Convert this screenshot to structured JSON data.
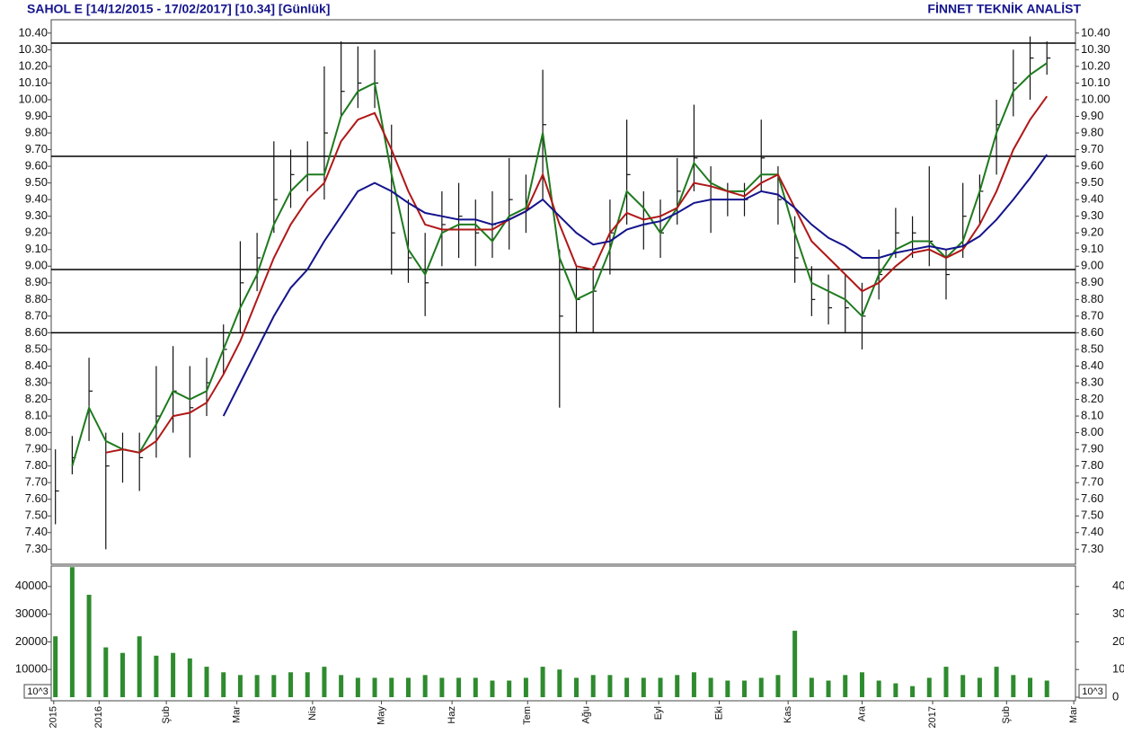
{
  "chart_data": [
    {
      "type": "ohlc",
      "title": "SAHOL E  [14/12/2015 - 17/02/2017]  [10.34]  [Günlük]",
      "source": "FİNNET TEKNİK ANALİST",
      "xlim": [
        -0.25,
        60.7
      ],
      "ylim": [
        7.21,
        10.48
      ],
      "yticks": [
        {
          "value": 7.3,
          "label": "7.30"
        },
        {
          "value": 7.4,
          "label": "7.40"
        },
        {
          "value": 7.5,
          "label": "7.50"
        },
        {
          "value": 7.6,
          "label": "7.60"
        },
        {
          "value": 7.7,
          "label": "7.70"
        },
        {
          "value": 7.8,
          "label": "7.80"
        },
        {
          "value": 7.9,
          "label": "7.90"
        },
        {
          "value": 8.0,
          "label": "8.00"
        },
        {
          "value": 8.1,
          "label": "8.10"
        },
        {
          "value": 8.2,
          "label": "8.20"
        },
        {
          "value": 8.3,
          "label": "8.30"
        },
        {
          "value": 8.4,
          "label": "8.40"
        },
        {
          "value": 8.5,
          "label": "8.50"
        },
        {
          "value": 8.6,
          "label": "8.60"
        },
        {
          "value": 8.7,
          "label": "8.70"
        },
        {
          "value": 8.8,
          "label": "8.80"
        },
        {
          "value": 8.9,
          "label": "8.90"
        },
        {
          "value": 9.0,
          "label": "9.00"
        },
        {
          "value": 9.1,
          "label": "9.10"
        },
        {
          "value": 9.2,
          "label": "9.20"
        },
        {
          "value": 9.3,
          "label": "9.30"
        },
        {
          "value": 9.4,
          "label": "9.40"
        },
        {
          "value": 9.5,
          "label": "9.50"
        },
        {
          "value": 9.6,
          "label": "9.60"
        },
        {
          "value": 9.7,
          "label": "9.70"
        },
        {
          "value": 9.8,
          "label": "9.80"
        },
        {
          "value": 9.9,
          "label": "9.90"
        },
        {
          "value": 10.0,
          "label": "10.00"
        },
        {
          "value": 10.1,
          "label": "10.10"
        },
        {
          "value": 10.2,
          "label": "10.20"
        },
        {
          "value": 10.3,
          "label": "10.30"
        },
        {
          "value": 10.4,
          "label": "10.40"
        }
      ],
      "hlines": [
        10.34,
        9.66,
        8.98,
        8.6
      ],
      "bar_color": "#111111",
      "high": [
        7.9,
        7.98,
        8.45,
        8.0,
        8.0,
        8.0,
        8.4,
        8.52,
        8.4,
        8.45,
        8.65,
        9.15,
        9.2,
        9.75,
        9.7,
        9.75,
        10.2,
        10.35,
        10.32,
        10.3,
        9.85,
        9.4,
        9.2,
        9.45,
        9.5,
        9.4,
        9.45,
        9.65,
        9.55,
        10.18,
        9.1,
        9.0,
        9.0,
        9.4,
        9.88,
        9.45,
        9.4,
        9.65,
        9.97,
        9.6,
        9.5,
        9.5,
        9.88,
        9.6,
        9.3,
        9.0,
        8.95,
        8.95,
        8.9,
        9.1,
        9.35,
        9.3,
        9.6,
        9.1,
        9.5,
        9.55,
        10.0,
        10.3,
        10.38,
        10.35
      ],
      "low": [
        7.45,
        7.75,
        7.95,
        7.3,
        7.7,
        7.65,
        7.85,
        8.0,
        7.85,
        8.1,
        8.35,
        8.6,
        8.85,
        9.2,
        9.35,
        9.45,
        9.4,
        9.9,
        9.95,
        9.95,
        8.95,
        8.9,
        8.7,
        9.0,
        9.05,
        9.0,
        9.05,
        9.1,
        9.2,
        9.4,
        8.15,
        8.6,
        8.6,
        8.95,
        9.25,
        9.1,
        9.05,
        9.25,
        9.45,
        9.2,
        9.3,
        9.3,
        9.45,
        9.25,
        8.9,
        8.7,
        8.65,
        8.6,
        8.5,
        8.8,
        9.05,
        9.05,
        9.0,
        8.8,
        9.05,
        9.25,
        9.55,
        9.9,
        10.0,
        10.15
      ],
      "close": [
        7.65,
        7.85,
        8.25,
        7.8,
        7.9,
        7.85,
        8.1,
        8.25,
        8.15,
        8.3,
        8.5,
        8.9,
        9.05,
        9.4,
        9.55,
        9.55,
        9.8,
        10.05,
        10.1,
        10.1,
        9.2,
        9.05,
        8.9,
        9.25,
        9.3,
        9.2,
        9.25,
        9.4,
        9.35,
        9.85,
        8.7,
        8.8,
        8.85,
        9.2,
        9.55,
        9.25,
        9.2,
        9.45,
        9.65,
        9.4,
        9.4,
        9.4,
        9.65,
        9.4,
        9.05,
        8.8,
        8.75,
        8.75,
        8.7,
        8.95,
        9.2,
        9.2,
        9.15,
        8.95,
        9.3,
        9.45,
        9.85,
        10.1,
        10.25,
        10.25
      ],
      "series": [
        {
          "color": "#1e7a1e",
          "values": [
            null,
            7.8,
            8.15,
            7.95,
            7.9,
            7.88,
            8.05,
            8.25,
            8.2,
            8.25,
            8.5,
            8.75,
            8.95,
            9.25,
            9.45,
            9.55,
            9.55,
            9.9,
            10.05,
            10.1,
            9.55,
            9.1,
            8.95,
            9.2,
            9.25,
            9.25,
            9.15,
            9.3,
            9.35,
            9.8,
            9.05,
            8.8,
            8.85,
            9.1,
            9.45,
            9.35,
            9.2,
            9.35,
            9.62,
            9.5,
            9.45,
            9.45,
            9.55,
            9.55,
            9.2,
            8.9,
            8.85,
            8.8,
            8.7,
            8.95,
            9.1,
            9.15,
            9.15,
            9.05,
            9.15,
            9.45,
            9.8,
            10.05,
            10.15,
            10.22
          ]
        },
        {
          "color": "#b01818",
          "values": [
            null,
            null,
            null,
            7.88,
            7.9,
            7.88,
            7.95,
            8.1,
            8.12,
            8.18,
            8.35,
            8.55,
            8.8,
            9.05,
            9.25,
            9.4,
            9.5,
            9.75,
            9.88,
            9.92,
            9.7,
            9.45,
            9.25,
            9.22,
            9.22,
            9.22,
            9.22,
            9.28,
            9.33,
            9.55,
            9.25,
            9.0,
            8.98,
            9.2,
            9.32,
            9.28,
            9.3,
            9.35,
            9.5,
            9.48,
            9.45,
            9.42,
            9.5,
            9.55,
            9.35,
            9.15,
            9.05,
            8.95,
            8.85,
            8.9,
            9.0,
            9.08,
            9.1,
            9.05,
            9.1,
            9.25,
            9.45,
            9.7,
            9.88,
            10.02
          ]
        },
        {
          "color": "#14148c",
          "values": [
            null,
            null,
            null,
            null,
            null,
            null,
            null,
            null,
            null,
            null,
            8.1,
            8.3,
            8.5,
            8.7,
            8.87,
            8.98,
            9.15,
            9.3,
            9.45,
            9.5,
            9.45,
            9.38,
            9.32,
            9.3,
            9.28,
            9.28,
            9.25,
            9.28,
            9.33,
            9.4,
            9.3,
            9.2,
            9.13,
            9.15,
            9.22,
            9.25,
            9.27,
            9.32,
            9.38,
            9.4,
            9.4,
            9.4,
            9.45,
            9.43,
            9.35,
            9.25,
            9.17,
            9.12,
            9.05,
            9.05,
            9.08,
            9.1,
            9.12,
            9.1,
            9.12,
            9.18,
            9.28,
            9.4,
            9.53,
            9.67
          ]
        }
      ]
    },
    {
      "type": "bar",
      "unit_label": "10^3",
      "color": "#2e8b2e",
      "xlim": [
        -0.25,
        60.7
      ],
      "ylim": [
        0,
        47400
      ],
      "yticks": [
        0,
        10000,
        20000,
        30000,
        40000
      ],
      "xticks": [
        {
          "value": -0.1,
          "label": "2015"
        },
        {
          "value": 2.6,
          "label": "2016"
        },
        {
          "value": 6.6,
          "label": "Şub"
        },
        {
          "value": 10.8,
          "label": "Mar"
        },
        {
          "value": 15.3,
          "label": "Nis"
        },
        {
          "value": 19.4,
          "label": "May"
        },
        {
          "value": 23.6,
          "label": "Haz"
        },
        {
          "value": 28.1,
          "label": "Tem"
        },
        {
          "value": 31.6,
          "label": "Ağu"
        },
        {
          "value": 35.9,
          "label": "Eyl"
        },
        {
          "value": 39.5,
          "label": "Eki"
        },
        {
          "value": 43.6,
          "label": "Kas"
        },
        {
          "value": 48.0,
          "label": "Ara"
        },
        {
          "value": 52.2,
          "label": "2017"
        },
        {
          "value": 56.6,
          "label": "Şub"
        },
        {
          "value": 60.6,
          "label": "Mar"
        }
      ],
      "values": [
        22000,
        47000,
        37000,
        18000,
        16000,
        22000,
        15000,
        16000,
        14000,
        11000,
        9000,
        8000,
        8000,
        8000,
        9000,
        9000,
        11000,
        8000,
        7000,
        7000,
        7000,
        7000,
        8000,
        7000,
        7000,
        7000,
        6000,
        6000,
        7000,
        11000,
        10000,
        7000,
        8000,
        8000,
        7000,
        7000,
        7000,
        8000,
        9000,
        7000,
        6000,
        6000,
        7000,
        8000,
        24000,
        7000,
        6000,
        8000,
        9000,
        6000,
        5000,
        4000,
        7000,
        11000,
        8000,
        7000,
        11000,
        8000,
        7000,
        6000
      ]
    }
  ]
}
